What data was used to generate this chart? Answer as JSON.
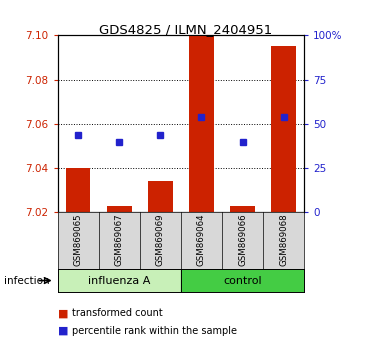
{
  "title": "GDS4825 / ILMN_2404951",
  "samples": [
    "GSM869065",
    "GSM869067",
    "GSM869069",
    "GSM869064",
    "GSM869066",
    "GSM869068"
  ],
  "red_values": [
    7.04,
    7.023,
    7.034,
    7.1,
    7.023,
    7.095
  ],
  "blue_values": [
    7.055,
    7.052,
    7.055,
    7.063,
    7.052,
    7.063
  ],
  "y_min": 7.02,
  "y_max": 7.1,
  "y_ticks": [
    7.02,
    7.04,
    7.06,
    7.08,
    7.1
  ],
  "y2_ticks": [
    0,
    25,
    50,
    75,
    100
  ],
  "bar_color": "#cc2200",
  "dot_color": "#2222cc",
  "tick_color_left": "#cc2200",
  "tick_color_right": "#2222cc",
  "bg_color": "#d8d8d8",
  "influenza_color": "#c8f0b8",
  "control_color": "#44cc44",
  "infection_label": "infection",
  "legend_red": "transformed count",
  "legend_blue": "percentile rank within the sample",
  "group_border_color": "#000000"
}
